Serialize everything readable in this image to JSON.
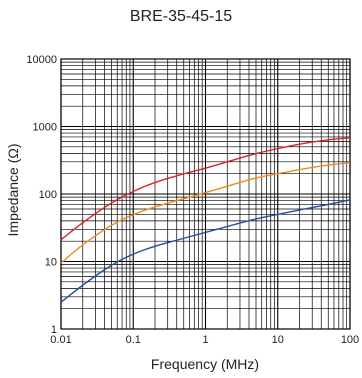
{
  "chart_data": {
    "type": "line",
    "title": "BRE-35-45-15",
    "xlabel": "Frequency (MHz)",
    "ylabel": "Impedance (Ω)",
    "xscale": "log",
    "yscale": "log",
    "xlim": [
      0.01,
      100
    ],
    "ylim": [
      1,
      10000
    ],
    "grid": true,
    "x_ticks": [
      "0.01",
      "0.1",
      "1",
      "10",
      "100"
    ],
    "y_ticks": [
      "1",
      "10",
      "100",
      "1000",
      "10000"
    ],
    "series": [
      {
        "color": "#d8232a",
        "x": [
          0.01,
          0.02,
          0.05,
          0.1,
          0.2,
          0.5,
          1,
          2,
          5,
          10,
          20,
          50,
          100
        ],
        "y": [
          21,
          38,
          75,
          110,
          150,
          200,
          240,
          300,
          400,
          470,
          550,
          640,
          680
        ]
      },
      {
        "color": "#f08a1c",
        "x": [
          0.01,
          0.02,
          0.05,
          0.1,
          0.2,
          0.5,
          1,
          2,
          5,
          10,
          20,
          50,
          100
        ],
        "y": [
          9.5,
          18,
          35,
          50,
          65,
          85,
          105,
          130,
          175,
          200,
          230,
          270,
          290
        ]
      },
      {
        "color": "#1f4fa0",
        "x": [
          0.01,
          0.02,
          0.05,
          0.1,
          0.2,
          0.5,
          1,
          2,
          5,
          10,
          20,
          50,
          100
        ],
        "y": [
          2.5,
          4.5,
          9,
          13,
          17,
          22,
          27,
          33,
          43,
          50,
          58,
          70,
          82
        ]
      }
    ]
  }
}
